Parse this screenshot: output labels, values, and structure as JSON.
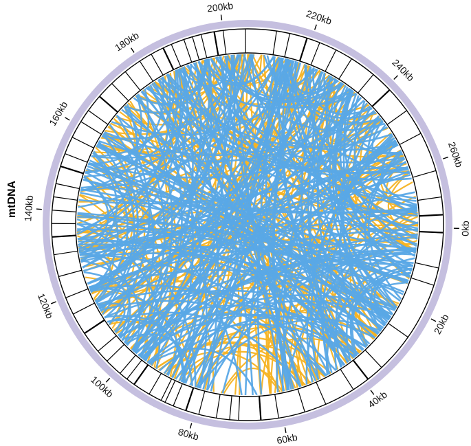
{
  "chromosome": {
    "label": "mtDNA",
    "total_kb": 275,
    "ideogram_color": "#c5bfdf"
  },
  "ticks": [
    "0kb",
    "20kb",
    "40kb",
    "60kb",
    "80kb",
    "100kb",
    "120kb",
    "140kb",
    "160kb",
    "180kb",
    "200kb",
    "220kb",
    "240kb",
    "260kb"
  ],
  "tick_positions_kb": [
    0,
    20,
    40,
    60,
    80,
    100,
    120,
    140,
    160,
    180,
    200,
    220,
    240,
    260
  ],
  "feature_positions_kb": [
    1,
    9,
    13,
    26,
    35,
    39,
    43,
    50,
    55,
    61,
    65,
    70,
    72,
    75,
    79,
    82,
    85,
    87,
    88,
    91,
    95,
    97,
    99,
    103,
    106,
    111,
    116,
    120,
    125,
    130,
    134,
    137,
    140,
    143,
    146,
    150,
    153,
    157,
    161,
    164,
    168,
    172,
    176,
    180,
    183,
    186,
    188,
    191,
    193,
    195,
    198,
    200,
    205,
    212,
    215,
    219,
    222,
    226,
    230,
    236,
    241,
    247,
    253,
    262,
    268,
    272
  ],
  "link_colors": {
    "blue": "#5aa8e6",
    "orange": "#f5b323"
  },
  "links": {
    "blue_count": 260,
    "orange_count": 170
  }
}
